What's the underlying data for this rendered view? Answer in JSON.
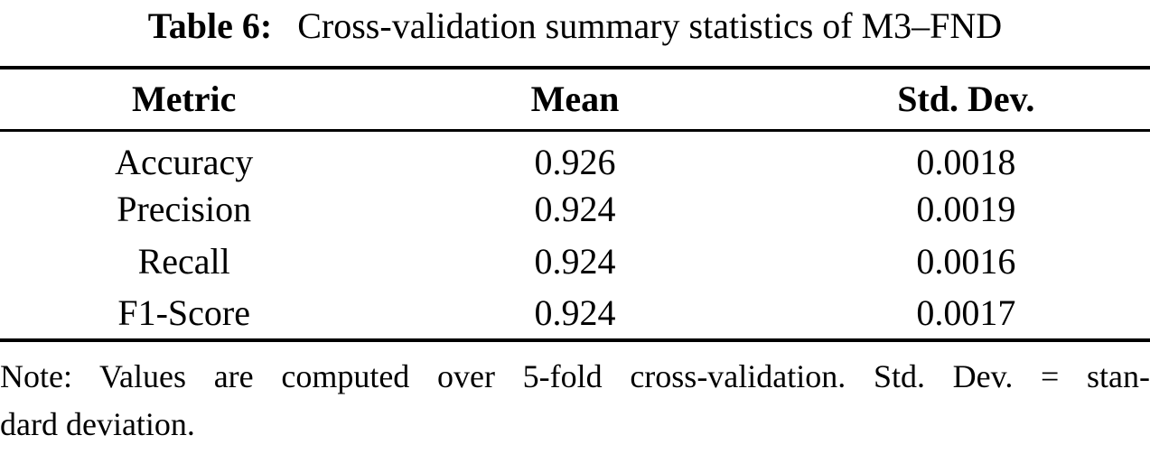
{
  "caption": {
    "label": "Table 6:",
    "text": "Cross-validation summary statistics of M3–FND"
  },
  "table": {
    "columns": [
      "Metric",
      "Mean",
      "Std. Dev."
    ],
    "rows": [
      {
        "metric": "Accuracy",
        "mean": "0.926",
        "std": "0.0018"
      },
      {
        "metric": "Precision",
        "mean": "0.924",
        "std": "0.0019"
      },
      {
        "metric": "Recall",
        "mean": "0.924",
        "std": "0.0016"
      },
      {
        "metric": "F1-Score",
        "mean": "0.924",
        "std": "0.0017"
      }
    ]
  },
  "note": {
    "line1": "Note: Values are computed over 5-fold cross-validation. Std. Dev. = stan-",
    "line2": "dard deviation."
  },
  "colors": {
    "background": "#ffffff",
    "text": "#000000",
    "rule": "#000000"
  }
}
